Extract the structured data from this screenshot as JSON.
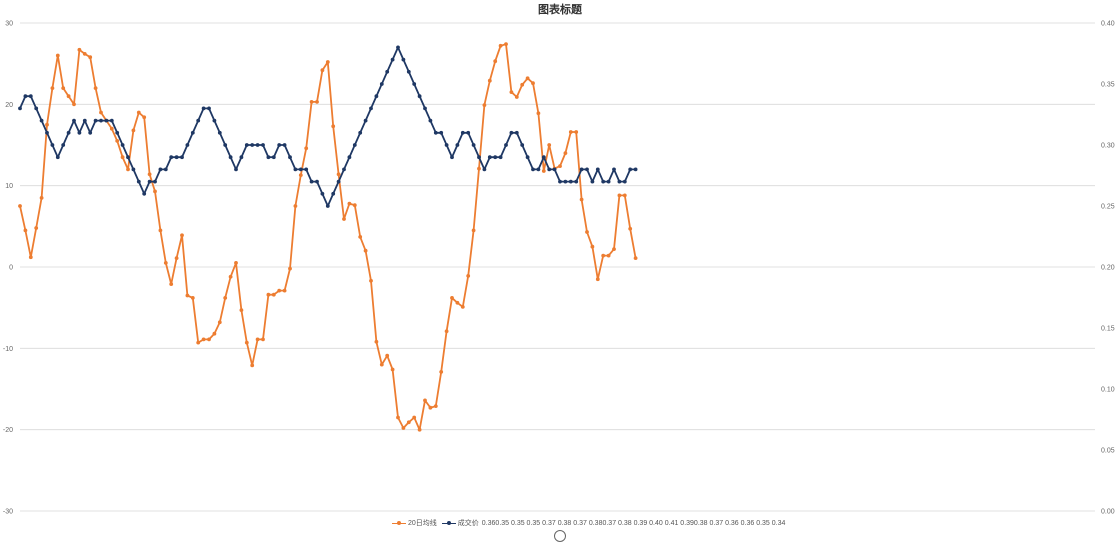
{
  "chart_data": {
    "type": "line",
    "title": "图表标题",
    "y_left": {
      "min": -30,
      "max": 30,
      "ticks": [
        30,
        20,
        10,
        0,
        -10,
        -20,
        -30
      ]
    },
    "y_right": {
      "min": 0.0,
      "max": 0.4,
      "ticks": [
        "0.40",
        "0.35",
        "0.30",
        "0.25",
        "0.20",
        "0.15",
        "0.10",
        "0.05",
        "0.00"
      ]
    },
    "grid": true,
    "legend_position": "bottom",
    "series": [
      {
        "name": "20日均线",
        "color": "#ED7D31",
        "axis": "left",
        "values": [
          7.5,
          4.5,
          1.2,
          4.8,
          8.5,
          17.5,
          22,
          26,
          22,
          21,
          20,
          26.7,
          26.2,
          25.8,
          22,
          19,
          18,
          17,
          15.5,
          13.5,
          12,
          16.8,
          19,
          18.4,
          11.4,
          9.3,
          4.5,
          0.5,
          -2.1,
          1.1,
          3.9,
          -3.5,
          -3.8,
          -9.3,
          -8.9,
          -8.9,
          -8.2,
          -6.8,
          -3.8,
          -1.2,
          0.5,
          -5.3,
          -9.3,
          -12.1,
          -8.9,
          -8.9,
          -3.4,
          -3.4,
          -2.9,
          -2.9,
          -0.2,
          7.5,
          11.3,
          14.6,
          20.3,
          20.3,
          24.2,
          25.2,
          17.3,
          11.4,
          5.9,
          7.8,
          7.6,
          3.7,
          2,
          -1.7,
          -9.2,
          -12,
          -10.9,
          -12.6,
          -18.5,
          -19.8,
          -19.1,
          -18.5,
          -20,
          -16.4,
          -17.3,
          -17.1,
          -12.9,
          -7.9,
          -3.8,
          -4.4,
          -4.9,
          -1.1,
          4.5,
          12.1,
          19.9,
          22.9,
          25.3,
          27.2,
          27.4,
          21.5,
          20.9,
          22.4,
          23.2,
          22.6,
          18.9,
          11.8,
          15,
          12.1,
          12.4,
          14,
          16.6,
          16.6,
          8.3,
          4.3,
          2.5,
          -1.5,
          1.4,
          1.4,
          2.2,
          8.8,
          8.8,
          4.7,
          1.1
        ]
      },
      {
        "name": "成交价",
        "color": "#1F3864",
        "axis": "right",
        "values": [
          0.33,
          0.34,
          0.34,
          0.33,
          0.32,
          0.31,
          0.3,
          0.29,
          0.3,
          0.31,
          0.32,
          0.31,
          0.32,
          0.31,
          0.32,
          0.32,
          0.32,
          0.32,
          0.31,
          0.3,
          0.29,
          0.28,
          0.27,
          0.26,
          0.27,
          0.27,
          0.28,
          0.28,
          0.29,
          0.29,
          0.29,
          0.3,
          0.31,
          0.32,
          0.33,
          0.33,
          0.32,
          0.31,
          0.3,
          0.29,
          0.28,
          0.29,
          0.3,
          0.3,
          0.3,
          0.3,
          0.29,
          0.29,
          0.3,
          0.3,
          0.29,
          0.28,
          0.28,
          0.28,
          0.27,
          0.27,
          0.26,
          0.25,
          0.26,
          0.27,
          0.28,
          0.29,
          0.3,
          0.31,
          0.32,
          0.33,
          0.34,
          0.35,
          0.36,
          0.37,
          0.38,
          0.37,
          0.36,
          0.35,
          0.34,
          0.33,
          0.32,
          0.31,
          0.31,
          0.3,
          0.29,
          0.3,
          0.31,
          0.31,
          0.3,
          0.29,
          0.28,
          0.29,
          0.29,
          0.29,
          0.3,
          0.31,
          0.31,
          0.3,
          0.29,
          0.28,
          0.28,
          0.29,
          0.28,
          0.28,
          0.27,
          0.27,
          0.27,
          0.27,
          0.28,
          0.28,
          0.27,
          0.28,
          0.27,
          0.27,
          0.28,
          0.27,
          0.27,
          0.28,
          0.28
        ]
      }
    ],
    "legend_extra_labels": "0.360.35 0.35 0.35 0.37 0.38 0.37 0.380.37 0.38 0.39 0.40 0.41 0.390.38 0.37 0.36 0.36 0.35 0.34"
  }
}
